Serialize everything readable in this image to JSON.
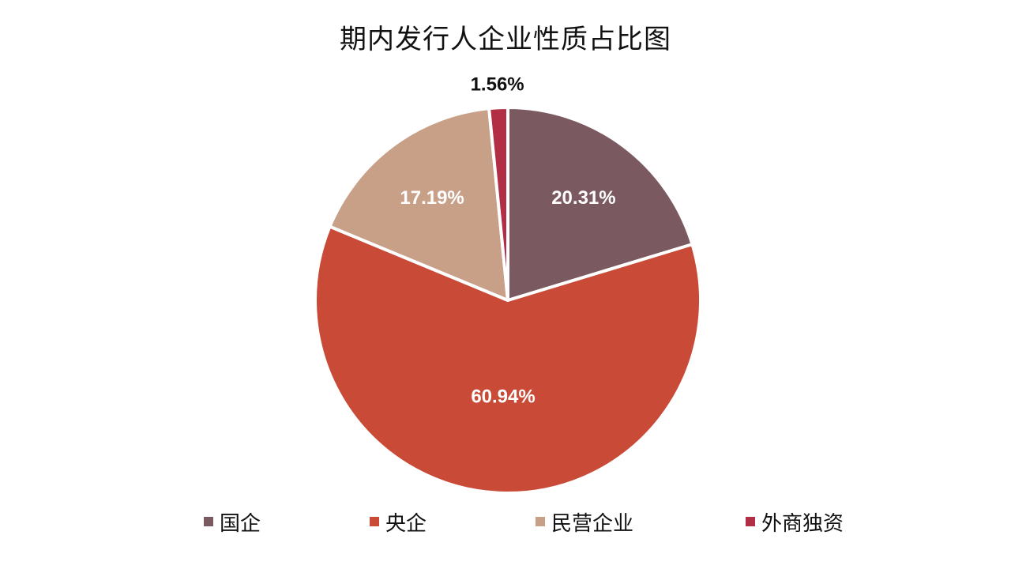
{
  "chart_data": {
    "type": "pie",
    "title": "期内发行人企业性质占比图",
    "start_angle_deg": 0,
    "direction": "clockwise",
    "legend_position": "bottom",
    "slices": [
      {
        "label": "国企",
        "value": 20.31,
        "display": "20.31%",
        "color": "#7a5960",
        "label_color": "#ffffff"
      },
      {
        "label": "央企",
        "value": 60.94,
        "display": "60.94%",
        "color": "#c84a37",
        "label_color": "#ffffff"
      },
      {
        "label": "民营企业",
        "value": 17.19,
        "display": "17.19%",
        "color": "#c8a088",
        "label_color": "#ffffff"
      },
      {
        "label": "外商独资",
        "value": 1.56,
        "display": "1.56%",
        "color": "#b22e45",
        "label_color": "#111111"
      }
    ]
  }
}
